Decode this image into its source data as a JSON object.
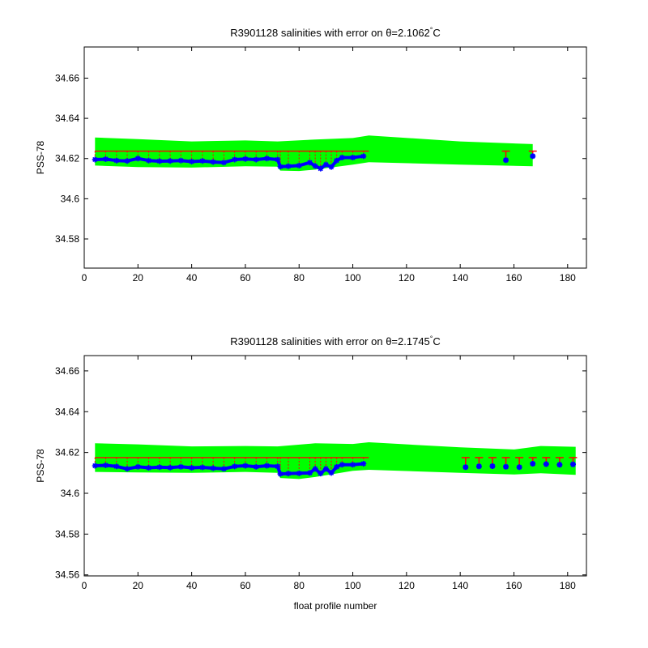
{
  "chart_data": [
    {
      "type": "line",
      "title": "R3901128 salinities with error on θ=2.1062",
      "title_sup": "°",
      "title_unit": "C",
      "xlabel": "",
      "ylabel": "PSS-78",
      "xlim": [
        0,
        187
      ],
      "ylim": [
        34.5655,
        34.6755
      ],
      "xticks": [
        0,
        20,
        40,
        60,
        80,
        100,
        120,
        140,
        160,
        180
      ],
      "yticks": [
        34.58,
        34.6,
        34.62,
        34.64,
        34.66
      ],
      "ytick_labels": [
        "34.58",
        "34.6",
        "34.62",
        "34.64",
        "34.66"
      ],
      "grid": false,
      "fill_color": "#00ff00",
      "mean_color": "#ff0000",
      "point_color": "#0000ff",
      "fill_band": {
        "upper": [
          [
            4,
            34.6305
          ],
          [
            20,
            34.6297
          ],
          [
            40,
            34.6285
          ],
          [
            60,
            34.629
          ],
          [
            72,
            34.6285
          ],
          [
            86,
            34.6295
          ],
          [
            100,
            34.6302
          ],
          [
            106,
            34.6315
          ],
          [
            140,
            34.6285
          ],
          [
            167,
            34.6272
          ]
        ],
        "lower": [
          [
            167,
            34.6162
          ],
          [
            140,
            34.617
          ],
          [
            106,
            34.6182
          ],
          [
            100,
            34.617
          ],
          [
            86,
            34.6145
          ],
          [
            80,
            34.6138
          ],
          [
            73,
            34.614
          ],
          [
            72,
            34.616
          ],
          [
            60,
            34.6162
          ],
          [
            40,
            34.6155
          ],
          [
            20,
            34.6158
          ],
          [
            4,
            34.6165
          ]
        ]
      },
      "mean_line": {
        "x": [
          4,
          106
        ],
        "y": 34.6237,
        "x2": [
          154,
          167
        ]
      },
      "err_points": [
        {
          "x": 157,
          "y": 34.6192,
          "upper": 34.6237
        },
        {
          "x": 167,
          "y": 34.6212,
          "upper": 34.6237
        }
      ],
      "series": [
        {
          "x": [
            4,
            8,
            12,
            16,
            20,
            24,
            28,
            32,
            36,
            40,
            44,
            48,
            52,
            56,
            60,
            64,
            68,
            72,
            73,
            76,
            80,
            84,
            86,
            88,
            90,
            92,
            94,
            96,
            100,
            104
          ],
          "y": [
            34.6195,
            34.6197,
            34.619,
            34.6188,
            34.62,
            34.619,
            34.6187,
            34.6188,
            34.619,
            34.6185,
            34.6188,
            34.6183,
            34.618,
            34.6195,
            34.6198,
            34.6195,
            34.62,
            34.6195,
            34.616,
            34.6162,
            34.6165,
            34.618,
            34.6163,
            34.615,
            34.617,
            34.6158,
            34.619,
            34.6205,
            34.6205,
            34.6212
          ]
        }
      ]
    },
    {
      "type": "line",
      "title": "R3901128 salinities with error on θ=2.1745",
      "title_sup": "°",
      "title_unit": "C",
      "xlabel": "float profile number",
      "ylabel": "PSS-78",
      "xlim": [
        0,
        187
      ],
      "ylim": [
        34.5595,
        34.6675
      ],
      "xticks": [
        0,
        20,
        40,
        60,
        80,
        100,
        120,
        140,
        160,
        180
      ],
      "yticks": [
        34.56,
        34.58,
        34.6,
        34.62,
        34.64,
        34.66
      ],
      "ytick_labels": [
        "34.56",
        "34.58",
        "34.6",
        "34.62",
        "34.64",
        "34.66"
      ],
      "grid": false,
      "fill_color": "#00ff00",
      "mean_color": "#ff0000",
      "point_color": "#0000ff",
      "fill_band": {
        "upper": [
          [
            4,
            34.6245
          ],
          [
            20,
            34.624
          ],
          [
            40,
            34.623
          ],
          [
            60,
            34.6232
          ],
          [
            72,
            34.623
          ],
          [
            86,
            34.6245
          ],
          [
            100,
            34.6242
          ],
          [
            106,
            34.625
          ],
          [
            140,
            34.6225
          ],
          [
            160,
            34.6215
          ],
          [
            170,
            34.6232
          ],
          [
            183,
            34.6228
          ]
        ],
        "lower": [
          [
            183,
            34.609
          ],
          [
            170,
            34.6098
          ],
          [
            160,
            34.6092
          ],
          [
            140,
            34.61
          ],
          [
            106,
            34.6115
          ],
          [
            100,
            34.611
          ],
          [
            86,
            34.608
          ],
          [
            80,
            34.607
          ],
          [
            73,
            34.6075
          ],
          [
            72,
            34.61
          ],
          [
            60,
            34.6105
          ],
          [
            40,
            34.61
          ],
          [
            20,
            34.6102
          ],
          [
            4,
            34.6105
          ]
        ]
      },
      "mean_line": {
        "x": [
          4,
          106
        ],
        "y": 34.6175,
        "x2": [
          140,
          184
        ]
      },
      "err_points": [
        {
          "x": 142,
          "y": 34.6128,
          "upper": 34.6175
        },
        {
          "x": 147,
          "y": 34.6132,
          "upper": 34.6175
        },
        {
          "x": 152,
          "y": 34.6133,
          "upper": 34.6175
        },
        {
          "x": 157,
          "y": 34.613,
          "upper": 34.6175
        },
        {
          "x": 162,
          "y": 34.6128,
          "upper": 34.6175
        },
        {
          "x": 167,
          "y": 34.6145,
          "upper": 34.6175
        },
        {
          "x": 172,
          "y": 34.6143,
          "upper": 34.6175
        },
        {
          "x": 177,
          "y": 34.614,
          "upper": 34.6175
        },
        {
          "x": 182,
          "y": 34.6142,
          "upper": 34.6175
        }
      ],
      "series": [
        {
          "x": [
            4,
            8,
            12,
            16,
            20,
            24,
            28,
            32,
            36,
            40,
            44,
            48,
            52,
            56,
            60,
            64,
            68,
            72,
            73,
            76,
            80,
            84,
            86,
            88,
            90,
            92,
            94,
            96,
            100,
            104
          ],
          "y": [
            34.6135,
            34.6137,
            34.6132,
            34.612,
            34.613,
            34.6125,
            34.6128,
            34.6126,
            34.613,
            34.6125,
            34.6127,
            34.6123,
            34.612,
            34.6132,
            34.6135,
            34.613,
            34.6135,
            34.6132,
            34.6095,
            34.6097,
            34.6098,
            34.61,
            34.612,
            34.6097,
            34.612,
            34.61,
            34.613,
            34.614,
            34.614,
            34.6145
          ]
        }
      ]
    }
  ]
}
